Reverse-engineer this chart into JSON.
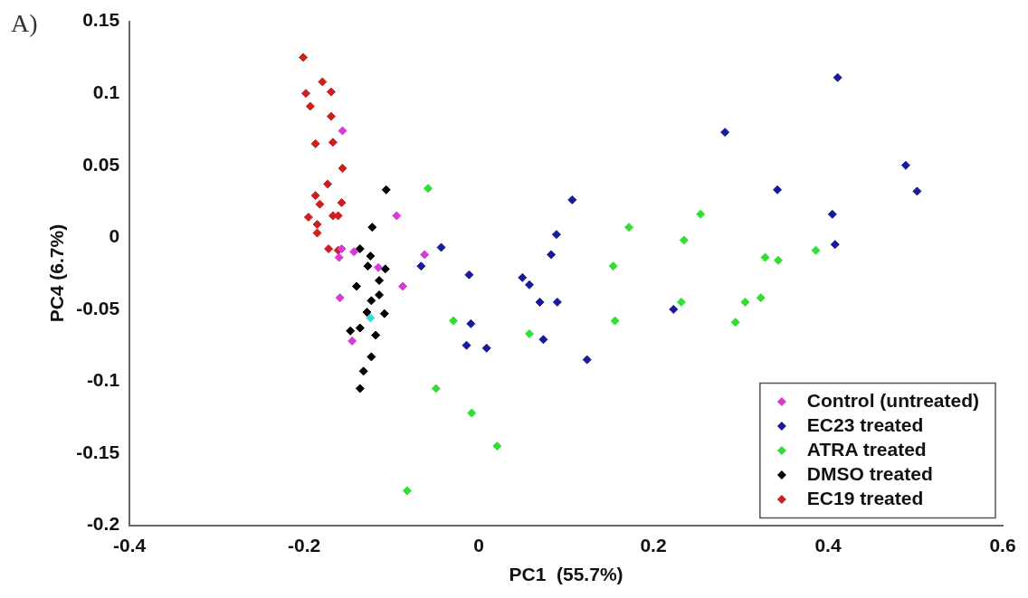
{
  "chart_data": {
    "type": "scatter",
    "xlabel": "PC1  (55.7%)",
    "ylabel": "PC4 (6.7%)",
    "annotations": [
      "A)"
    ],
    "xlim": [
      -0.4,
      0.6
    ],
    "xticks": [
      -0.4,
      -0.2,
      0,
      0.2,
      0.4,
      0.6
    ],
    "ylim": [
      -0.2,
      0.15
    ],
    "yticks": [
      -0.2,
      -0.15,
      -0.1,
      -0.05,
      0,
      0.05,
      0.1,
      0.15
    ],
    "grid": false,
    "legend": "bottom right",
    "marker": "diamond",
    "series": [
      {
        "name": "Control (untreated)",
        "color": "#d63bd6",
        "x": [
          -0.156,
          -0.094,
          -0.157,
          -0.16,
          -0.143,
          -0.062,
          -0.115,
          -0.087,
          -0.159,
          -0.145
        ],
        "values": [
          0.074,
          0.015,
          -0.008,
          -0.014,
          -0.01,
          -0.012,
          -0.021,
          -0.034,
          -0.042,
          -0.072
        ]
      },
      {
        "name": "EC23 treated",
        "color": "#1a1a99",
        "x": [
          -0.043,
          -0.066,
          -0.011,
          -0.009,
          -0.014,
          0.009,
          0.107,
          0.089,
          0.083,
          0.05,
          0.058,
          0.07,
          0.09,
          0.074,
          0.124,
          0.223,
          0.411,
          0.282,
          0.489,
          0.502,
          0.342,
          0.405,
          0.408
        ],
        "values": [
          -0.007,
          -0.02,
          -0.026,
          -0.06,
          -0.075,
          -0.077,
          0.026,
          0.002,
          -0.012,
          -0.028,
          -0.033,
          -0.045,
          -0.045,
          -0.071,
          -0.085,
          -0.05,
          0.111,
          0.073,
          0.05,
          0.032,
          0.033,
          0.016,
          -0.005
        ]
      },
      {
        "name": "ATRA treated",
        "color": "#33dd33",
        "x": [
          -0.058,
          -0.049,
          -0.082,
          -0.029,
          -0.008,
          0.021,
          0.058,
          0.154,
          0.156,
          0.172,
          0.235,
          0.254,
          0.232,
          0.305,
          0.323,
          0.294,
          0.328,
          0.343,
          0.386
        ],
        "values": [
          0.034,
          -0.105,
          -0.176,
          -0.058,
          -0.122,
          -0.145,
          -0.067,
          -0.02,
          -0.058,
          0.007,
          -0.002,
          0.016,
          -0.045,
          -0.045,
          -0.042,
          -0.059,
          -0.014,
          -0.016,
          -0.009
        ]
      },
      {
        "name": "DMSO treated",
        "color": "#000000",
        "x": [
          -0.106,
          -0.122,
          -0.136,
          -0.124,
          -0.127,
          -0.107,
          -0.114,
          -0.14,
          -0.114,
          -0.123,
          -0.128,
          -0.108,
          -0.147,
          -0.136,
          -0.118,
          -0.123,
          -0.132,
          -0.136
        ],
        "values": [
          0.033,
          0.007,
          -0.008,
          -0.013,
          -0.02,
          -0.022,
          -0.03,
          -0.034,
          -0.04,
          -0.044,
          -0.052,
          -0.053,
          -0.065,
          -0.063,
          -0.068,
          -0.083,
          -0.093,
          -0.105
        ]
      },
      {
        "name": "EC19 treated",
        "color": "#cc1f1f",
        "x": [
          -0.201,
          -0.179,
          -0.198,
          -0.169,
          -0.193,
          -0.169,
          -0.187,
          -0.167,
          -0.156,
          -0.173,
          -0.187,
          -0.182,
          -0.157,
          -0.195,
          -0.167,
          -0.161,
          -0.185,
          -0.185,
          -0.172,
          -0.161
        ],
        "values": [
          0.125,
          0.108,
          0.1,
          0.101,
          0.091,
          0.084,
          0.065,
          0.066,
          0.048,
          0.037,
          0.029,
          0.023,
          0.024,
          0.014,
          0.015,
          0.015,
          0.009,
          0.003,
          -0.008,
          -0.009
        ]
      },
      {
        "color": "#33dddd",
        "x": [
          -0.124
        ],
        "values": [
          -0.056
        ]
      }
    ]
  }
}
